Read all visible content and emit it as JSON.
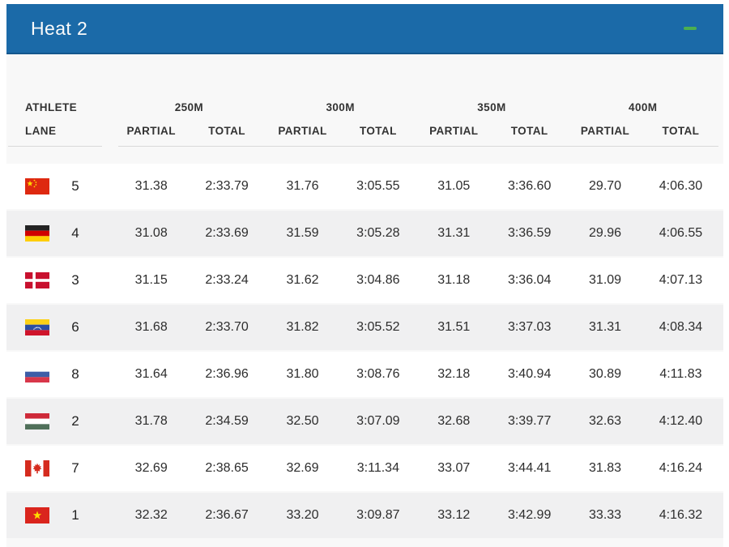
{
  "panel": {
    "title": "Heat 2",
    "header_bg": "#1b6aa8",
    "collapse_icon_color": "#4caf50"
  },
  "table": {
    "athlete_label": "ATHLETE",
    "lane_label": "LANE",
    "distance_groups": [
      {
        "label": "250M",
        "sub": [
          "PARTIAL",
          "TOTAL"
        ]
      },
      {
        "label": "300M",
        "sub": [
          "PARTIAL",
          "TOTAL"
        ]
      },
      {
        "label": "350M",
        "sub": [
          "PARTIAL",
          "TOTAL"
        ]
      },
      {
        "label": "400M",
        "sub": [
          "PARTIAL",
          "TOTAL"
        ]
      }
    ],
    "rows": [
      {
        "country": "chn",
        "country_name": "China",
        "lane": "5",
        "times": [
          "31.38",
          "2:33.79",
          "31.76",
          "3:05.55",
          "31.05",
          "3:36.60",
          "29.70",
          "4:06.30"
        ]
      },
      {
        "country": "ger",
        "country_name": "Germany",
        "lane": "4",
        "times": [
          "31.08",
          "2:33.69",
          "31.59",
          "3:05.28",
          "31.31",
          "3:36.59",
          "29.96",
          "4:06.55"
        ]
      },
      {
        "country": "den",
        "country_name": "Denmark",
        "lane": "3",
        "times": [
          "31.15",
          "2:33.24",
          "31.62",
          "3:04.86",
          "31.18",
          "3:36.04",
          "31.09",
          "4:07.13"
        ]
      },
      {
        "country": "ven",
        "country_name": "Venezuela",
        "lane": "6",
        "times": [
          "31.68",
          "2:33.70",
          "31.82",
          "3:05.52",
          "31.51",
          "3:37.03",
          "31.31",
          "4:08.34"
        ]
      },
      {
        "country": "rus",
        "country_name": "Russia",
        "lane": "8",
        "times": [
          "31.64",
          "2:36.96",
          "31.80",
          "3:08.76",
          "32.18",
          "3:40.94",
          "30.89",
          "4:11.83"
        ]
      },
      {
        "country": "hun",
        "country_name": "Hungary",
        "lane": "2",
        "times": [
          "31.78",
          "2:34.59",
          "32.50",
          "3:07.09",
          "32.68",
          "3:39.77",
          "32.63",
          "4:12.40"
        ]
      },
      {
        "country": "can",
        "country_name": "Canada",
        "lane": "7",
        "times": [
          "32.69",
          "2:38.65",
          "32.69",
          "3:11.34",
          "33.07",
          "3:44.41",
          "31.83",
          "4:16.24"
        ]
      },
      {
        "country": "vie",
        "country_name": "Vietnam",
        "lane": "1",
        "times": [
          "32.32",
          "2:36.67",
          "33.20",
          "3:09.87",
          "33.12",
          "3:42.99",
          "33.33",
          "4:16.32"
        ]
      }
    ]
  }
}
